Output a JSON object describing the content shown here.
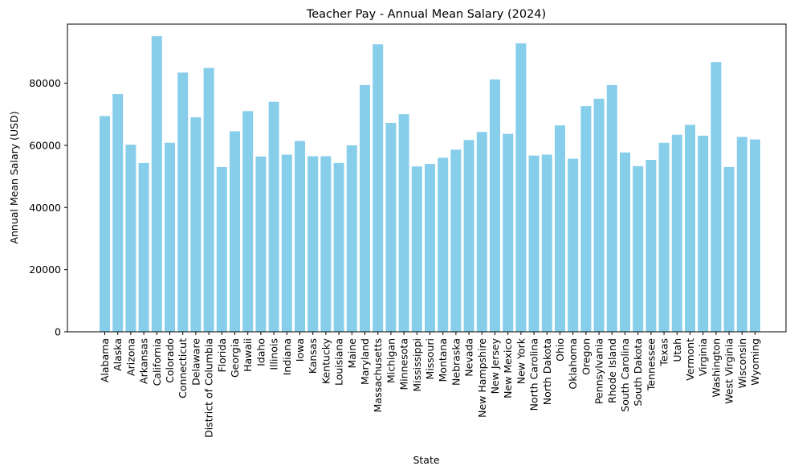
{
  "chart_data": {
    "type": "bar",
    "title": "Teacher Pay - Annual Mean Salary (2024)",
    "xlabel": "State",
    "ylabel": "Annual Mean Salary (USD)",
    "ylim": [
      0,
      99000
    ],
    "yticks": [
      0,
      20000,
      40000,
      60000,
      80000
    ],
    "bar_color": "#87CEEB",
    "grid": false,
    "categories": [
      "Alabama",
      "Alaska",
      "Arizona",
      "Arkansas",
      "California",
      "Colorado",
      "Connecticut",
      "Delaware",
      "District of Columbia",
      "Florida",
      "Georgia",
      "Hawaii",
      "Idaho",
      "Illinois",
      "Indiana",
      "Iowa",
      "Kansas",
      "Kentucky",
      "Louisiana",
      "Maine",
      "Maryland",
      "Massachusetts",
      "Michigan",
      "Minnesota",
      "Mississippi",
      "Missouri",
      "Montana",
      "Nebraska",
      "Nevada",
      "New Hampshire",
      "New Jersey",
      "New Mexico",
      "New York",
      "North Carolina",
      "North Dakota",
      "Ohio",
      "Oklahoma",
      "Oregon",
      "Pennsylvania",
      "Rhode Island",
      "South Carolina",
      "South Dakota",
      "Tennessee",
      "Texas",
      "Utah",
      "Vermont",
      "Virginia",
      "Washington",
      "West Virginia",
      "Wisconsin",
      "Wyoming"
    ],
    "values": [
      69400,
      76500,
      60200,
      54300,
      95100,
      60800,
      83400,
      69000,
      84900,
      53000,
      64500,
      71000,
      56400,
      74000,
      57000,
      61400,
      56500,
      56500,
      54300,
      60000,
      79400,
      92500,
      67200,
      70000,
      53200,
      54000,
      56000,
      58600,
      61700,
      64300,
      81200,
      63700,
      92800,
      56700,
      57000,
      66400,
      55700,
      72600,
      75000,
      79400,
      57700,
      53300,
      55300,
      60800,
      63400,
      66600,
      63100,
      86800,
      53000,
      62700,
      61900
    ]
  }
}
